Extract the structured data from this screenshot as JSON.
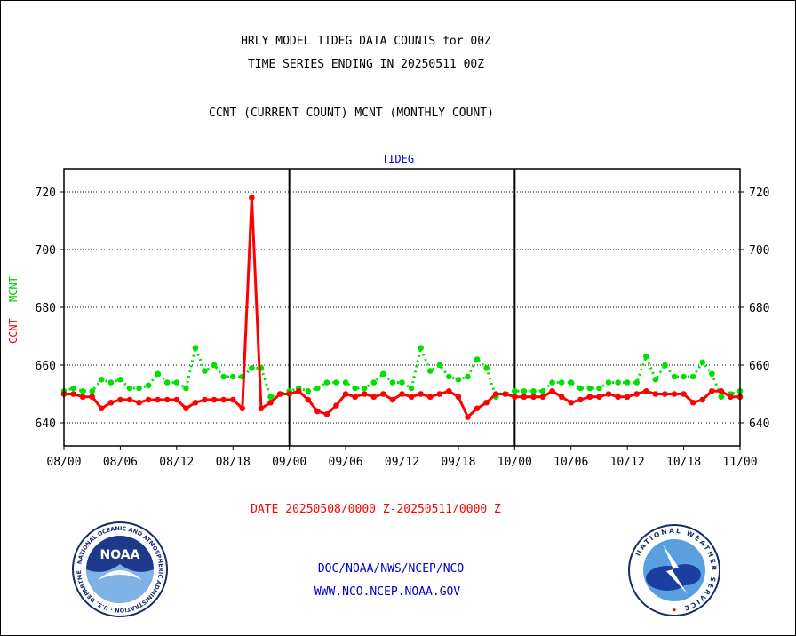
{
  "header": {
    "line1": "HRLY MODEL TIDEG DATA COUNTS for 00Z",
    "line2": "TIME SERIES ENDING IN 20250511 00Z",
    "legend_text": "CCNT (CURRENT COUNT) MCNT (MONTHLY COUNT)"
  },
  "footer": {
    "date_range": "DATE 20250508/0000 Z-20250511/0000 Z",
    "link1": "DOC/NOAA/NWS/NCEP/NCO",
    "link2": "WWW.NCO.NCEP.NOAA.GOV"
  },
  "logos": {
    "noaa": {
      "center_text": "NOAA",
      "ring_text": "NATIONAL OCEANIC AND ATMOSPHERIC ADMINISTRATION · U.S. DEPARTMENT OF COMMERCE"
    },
    "nws": {
      "ring_text": "NATIONAL WEATHER SERVICE"
    }
  },
  "colors": {
    "ccnt": "#ff0000",
    "mcnt": "#00e000",
    "label_blue": "#0000cc"
  },
  "chart_data": {
    "type": "line",
    "title": "TIDEG",
    "ylabel_series": [
      "CCNT",
      "MCNT"
    ],
    "ylim": [
      632,
      728
    ],
    "yticks": [
      640,
      660,
      680,
      700,
      720
    ],
    "xlim": [
      0,
      72
    ],
    "xticks": [
      {
        "x": 0,
        "label": "08/00"
      },
      {
        "x": 6,
        "label": "08/06"
      },
      {
        "x": 12,
        "label": "08/12"
      },
      {
        "x": 18,
        "label": "08/18"
      },
      {
        "x": 24,
        "label": "09/00"
      },
      {
        "x": 30,
        "label": "09/06"
      },
      {
        "x": 36,
        "label": "09/12"
      },
      {
        "x": 42,
        "label": "09/18"
      },
      {
        "x": 48,
        "label": "10/00"
      },
      {
        "x": 54,
        "label": "10/06"
      },
      {
        "x": 60,
        "label": "10/12"
      },
      {
        "x": 66,
        "label": "10/18"
      },
      {
        "x": 72,
        "label": "11/00"
      }
    ],
    "day_dividers": [
      24,
      48
    ],
    "grid": true,
    "series": [
      {
        "name": "CCNT",
        "style": "solid",
        "color": "#ff0000",
        "values": [
          650,
          650,
          649,
          649,
          645,
          647,
          648,
          648,
          647,
          648,
          648,
          648,
          648,
          645,
          647,
          648,
          648,
          648,
          648,
          645,
          718,
          645,
          647,
          650,
          650,
          651,
          648,
          644,
          643,
          646,
          650,
          649,
          650,
          649,
          650,
          648,
          650,
          649,
          650,
          649,
          650,
          651,
          649,
          642,
          645,
          647,
          650,
          650,
          649,
          649,
          649,
          649,
          651,
          649,
          647,
          648,
          649,
          649,
          650,
          649,
          649,
          650,
          651,
          650,
          650,
          650,
          650,
          647,
          648,
          651,
          651,
          649,
          649
        ]
      },
      {
        "name": "MCNT",
        "style": "dotted",
        "color": "#00e000",
        "values": [
          651,
          652,
          651,
          651,
          655,
          654,
          655,
          652,
          652,
          653,
          657,
          654,
          654,
          652,
          666,
          658,
          660,
          656,
          656,
          656,
          659,
          659,
          649,
          650,
          651,
          652,
          651,
          652,
          654,
          654,
          654,
          652,
          652,
          654,
          657,
          654,
          654,
          652,
          666,
          658,
          660,
          656,
          655,
          656,
          662,
          659,
          649,
          650,
          651,
          651,
          651,
          651,
          654,
          654,
          654,
          652,
          652,
          652,
          654,
          654,
          654,
          654,
          663,
          655,
          660,
          656,
          656,
          656,
          661,
          657,
          649,
          650,
          651
        ]
      }
    ]
  }
}
